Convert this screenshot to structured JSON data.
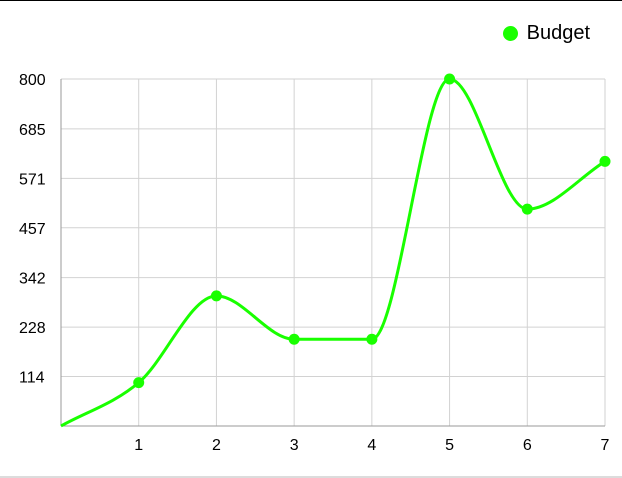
{
  "legend": {
    "label": "Budget"
  },
  "colors": {
    "series": "#19ff00",
    "grid": "#d2d2d2",
    "axis": "#9a9a9a"
  },
  "chart_data": {
    "type": "line",
    "smooth": true,
    "x": [
      0,
      1,
      2,
      3,
      4,
      5,
      6,
      7
    ],
    "xlim": [
      0,
      7
    ],
    "ylim": [
      0,
      800
    ],
    "y_ticks": [
      114,
      228,
      342,
      457,
      571,
      685,
      800
    ],
    "x_ticks": [
      1,
      2,
      3,
      4,
      5,
      6,
      7
    ],
    "series": [
      {
        "name": "Budget",
        "values": [
          0,
          100,
          300,
          200,
          200,
          800,
          500,
          610
        ],
        "markers_from_index": 1
      }
    ],
    "grid": true,
    "legend_position": "top-right"
  }
}
